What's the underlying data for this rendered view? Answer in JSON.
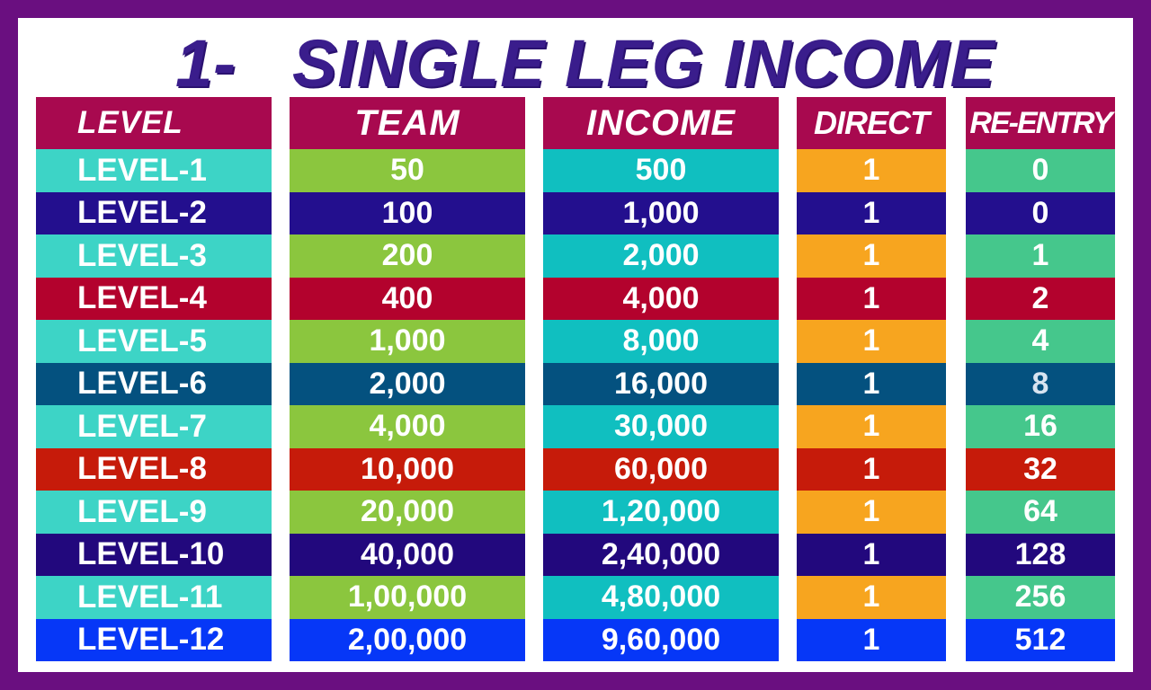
{
  "title": {
    "number": "1-",
    "text": "SINGLE LEG INCOME"
  },
  "headers": {
    "level": "LEVEL",
    "team": "TEAM",
    "income": "INCOME",
    "direct": "DIRECT",
    "reentry": "RE-ENTRY"
  },
  "rows": [
    {
      "level": "LEVEL-1",
      "team": "50",
      "income": "500",
      "direct": "1",
      "reentry": "0"
    },
    {
      "level": "LEVEL-2",
      "team": "100",
      "income": "1,000",
      "direct": "1",
      "reentry": "0"
    },
    {
      "level": "LEVEL-3",
      "team": "200",
      "income": "2,000",
      "direct": "1",
      "reentry": "1"
    },
    {
      "level": "LEVEL-4",
      "team": "400",
      "income": "4,000",
      "direct": "1",
      "reentry": "2"
    },
    {
      "level": "LEVEL-5",
      "team": "1,000",
      "income": "8,000",
      "direct": "1",
      "reentry": "4"
    },
    {
      "level": "LEVEL-6",
      "team": "2,000",
      "income": "16,000",
      "direct": "1",
      "reentry": "8"
    },
    {
      "level": "LEVEL-7",
      "team": "4,000",
      "income": "30,000",
      "direct": "1",
      "reentry": "16"
    },
    {
      "level": "LEVEL-8",
      "team": "10,000",
      "income": "60,000",
      "direct": "1",
      "reentry": "32"
    },
    {
      "level": "LEVEL-9",
      "team": "20,000",
      "income": "1,20,000",
      "direct": "1",
      "reentry": "64"
    },
    {
      "level": "LEVEL-10",
      "team": "40,000",
      "income": "2,40,000",
      "direct": "1",
      "reentry": "128"
    },
    {
      "level": "LEVEL-11",
      "team": "1,00,000",
      "income": "4,80,000",
      "direct": "1",
      "reentry": "256"
    },
    {
      "level": "LEVEL-12",
      "team": "2,00,000",
      "income": "9,60,000",
      "direct": "1",
      "reentry": "512"
    }
  ],
  "colors": {
    "border": "#6a0f80",
    "title": "#3a1d8c",
    "header": "#a8094f",
    "row_colors": [
      {
        "level": "#3dd4c6",
        "team": "#8bc63e",
        "income": "#10bfc0",
        "direct": "#f7a51f",
        "reentry": "#45c78c"
      },
      {
        "level": "#230f8e",
        "team": "#230f8e",
        "income": "#230f8e",
        "direct": "#230f8e",
        "reentry": "#230f8e"
      },
      {
        "level": "#3dd4c6",
        "team": "#8bc63e",
        "income": "#10bfc0",
        "direct": "#f7a51f",
        "reentry": "#45c78c"
      },
      {
        "level": "#b3022d",
        "team": "#b3022d",
        "income": "#b3022d",
        "direct": "#b3022d",
        "reentry": "#b3022d"
      },
      {
        "level": "#3dd4c6",
        "team": "#8bc63e",
        "income": "#10bfc0",
        "direct": "#f7a51f",
        "reentry": "#45c78c"
      },
      {
        "level": "#04517f",
        "team": "#04517f",
        "income": "#04517f",
        "direct": "#04517f",
        "reentry": "#04517f"
      },
      {
        "level": "#3dd4c6",
        "team": "#8bc63e",
        "income": "#10bfc0",
        "direct": "#f7a51f",
        "reentry": "#45c78c"
      },
      {
        "level": "#c61b0a",
        "team": "#c61b0a",
        "income": "#c61b0a",
        "direct": "#c61b0a",
        "reentry": "#c61b0a"
      },
      {
        "level": "#3dd4c6",
        "team": "#8bc63e",
        "income": "#10bfc0",
        "direct": "#f7a51f",
        "reentry": "#45c78c"
      },
      {
        "level": "#22087d",
        "team": "#22087d",
        "income": "#22087d",
        "direct": "#22087d",
        "reentry": "#22087d"
      },
      {
        "level": "#3dd4c6",
        "team": "#8bc63e",
        "income": "#10bfc0",
        "direct": "#f7a51f",
        "reentry": "#45c78c"
      },
      {
        "level": "#0637f7",
        "team": "#0637f7",
        "income": "#0637f7",
        "direct": "#0637f7",
        "reentry": "#0637f7"
      }
    ]
  }
}
